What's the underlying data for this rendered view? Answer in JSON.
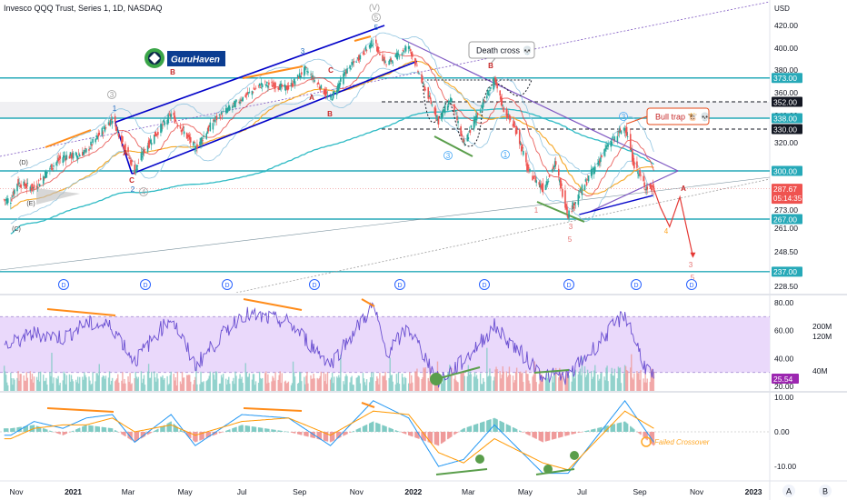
{
  "header": {
    "title": "Invesco QQQ Trust, Series 1, 1D, NASDAQ",
    "watermark_text": "GuruHaven"
  },
  "chart_data": [
    {
      "type": "candlestick",
      "symbol": "QQQ",
      "interval": "1D",
      "currency_label": "USD",
      "y_ticks": [
        420.0,
        400.0,
        380.0,
        360.0,
        340.0,
        320.0,
        273.0,
        261.0,
        248.5,
        228.5
      ],
      "ylim": [
        225,
        428
      ],
      "price_tags": [
        {
          "label": "373.00",
          "kind": "level"
        },
        {
          "label": "352.00",
          "kind": "dark"
        },
        {
          "label": "338.00",
          "kind": "level"
        },
        {
          "label": "330.00",
          "kind": "dark"
        },
        {
          "label": "300.00",
          "kind": "level"
        },
        {
          "label": "287.67",
          "sublabel": "05:14:35",
          "kind": "last"
        },
        {
          "label": "267.00",
          "kind": "level"
        },
        {
          "label": "237.00",
          "kind": "level"
        }
      ],
      "horizontal_levels": [
        373,
        338,
        300,
        267,
        237
      ],
      "dashed_levels": [
        352,
        330
      ],
      "price_path": [
        {
          "date": "2020-10-26",
          "close": 280
        },
        {
          "date": "2020-11-02",
          "close": 292
        },
        {
          "date": "2020-11-09",
          "close": 290
        },
        {
          "date": "2020-11-20",
          "close": 288
        },
        {
          "date": "2020-12-07",
          "close": 302
        },
        {
          "date": "2020-12-21",
          "close": 310
        },
        {
          "date": "2021-01-04",
          "close": 311
        },
        {
          "date": "2021-01-15",
          "close": 314
        },
        {
          "date": "2021-02-12",
          "close": 338
        },
        {
          "date": "2021-02-22",
          "close": 322
        },
        {
          "date": "2021-03-08",
          "close": 300
        },
        {
          "date": "2021-03-19",
          "close": 316
        },
        {
          "date": "2021-04-16",
          "close": 341
        },
        {
          "date": "2021-05-12",
          "close": 316
        },
        {
          "date": "2021-06-01",
          "close": 336
        },
        {
          "date": "2021-07-01",
          "close": 355
        },
        {
          "date": "2021-07-23",
          "close": 368
        },
        {
          "date": "2021-08-20",
          "close": 364
        },
        {
          "date": "2021-09-07",
          "close": 381
        },
        {
          "date": "2021-10-04",
          "close": 354
        },
        {
          "date": "2021-10-20",
          "close": 378
        },
        {
          "date": "2021-11-19",
          "close": 406
        },
        {
          "date": "2021-12-03",
          "close": 385
        },
        {
          "date": "2021-12-27",
          "close": 402
        },
        {
          "date": "2022-01-10",
          "close": 370
        },
        {
          "date": "2022-01-28",
          "close": 336
        },
        {
          "date": "2022-02-10",
          "close": 355
        },
        {
          "date": "2022-02-24",
          "close": 318
        },
        {
          "date": "2022-03-29",
          "close": 371
        },
        {
          "date": "2022-04-08",
          "close": 345
        },
        {
          "date": "2022-04-22",
          "close": 328
        },
        {
          "date": "2022-05-04",
          "close": 300
        },
        {
          "date": "2022-05-20",
          "close": 288
        },
        {
          "date": "2022-06-02",
          "close": 305
        },
        {
          "date": "2022-06-16",
          "close": 270
        },
        {
          "date": "2022-07-05",
          "close": 292
        },
        {
          "date": "2022-07-29",
          "close": 318
        },
        {
          "date": "2022-08-16",
          "close": 332
        },
        {
          "date": "2022-08-26",
          "close": 304
        },
        {
          "date": "2022-09-07",
          "close": 289
        },
        {
          "date": "2022-09-16",
          "close": 287.67
        }
      ],
      "projection_path": [
        {
          "date": "2022-09-16",
          "price": 287.67
        },
        {
          "date": "2022-09-23",
          "price": 275
        },
        {
          "date": "2022-10-03",
          "price": 262
        },
        {
          "date": "2022-10-14",
          "price": 282
        },
        {
          "date": "2022-10-28",
          "price": 246
        }
      ],
      "annotations": [
        {
          "text": "Death cross 💀",
          "kind": "callout"
        },
        {
          "text": "Bull trap 🐮 💀",
          "kind": "callout"
        },
        {
          "text": "(V)",
          "kind": "wave-gray"
        },
        {
          "text": "5",
          "kind": "wave-gray-circle"
        },
        {
          "text": "5",
          "kind": "wave-blue"
        },
        {
          "text": "3",
          "kind": "wave-blue"
        },
        {
          "text": "3",
          "kind": "wave-gray-circle"
        },
        {
          "text": "1",
          "kind": "wave-blue"
        },
        {
          "text": "2",
          "kind": "wave-blue"
        },
        {
          "text": "4",
          "kind": "wave-gray-circle"
        },
        {
          "text": "(D)",
          "kind": "wave-dark"
        },
        {
          "text": "(E)",
          "kind": "wave-dark"
        },
        {
          "text": "(C)",
          "kind": "wave-dark"
        },
        {
          "text": "C",
          "kind": "wave-red"
        },
        {
          "text": "A",
          "kind": "wave-red"
        },
        {
          "text": "B",
          "kind": "wave-red"
        },
        {
          "text": "A",
          "kind": "wave-red"
        },
        {
          "text": "B",
          "kind": "wave-red"
        },
        {
          "text": "C",
          "kind": "wave-red"
        },
        {
          "text": "B",
          "kind": "wave-red"
        },
        {
          "text": "3",
          "kind": "wave-blue-circle"
        },
        {
          "text": "1",
          "kind": "wave-blue-circle"
        },
        {
          "text": "1",
          "kind": "wave-red-thin"
        },
        {
          "text": "3",
          "kind": "wave-red-thin"
        },
        {
          "text": "5",
          "kind": "wave-red-thin"
        },
        {
          "text": "A",
          "kind": "wave-red"
        },
        {
          "text": "4",
          "kind": "wave-orange"
        },
        {
          "text": "3",
          "kind": "wave-red-thin"
        },
        {
          "text": "5",
          "kind": "wave-red-thin"
        },
        {
          "text": "C",
          "kind": "wave-red"
        },
        {
          "text": "3",
          "kind": "wave-blue-circle"
        },
        {
          "text": "B",
          "kind": "wave-red"
        }
      ],
      "dividend_markers": [
        "D",
        "D",
        "D",
        "D",
        "D",
        "D",
        "D",
        "D",
        "D"
      ]
    },
    {
      "type": "line",
      "indicator": "RSI with volume",
      "y_ticks": [
        80.0,
        60.0,
        40.0,
        20.0
      ],
      "volume_ticks": [
        "200M",
        "120M",
        "40M"
      ],
      "band": [
        30,
        70
      ],
      "last_value_label": "25.54",
      "rsi_path": [
        {
          "date": "2020-10-26",
          "value": 50
        },
        {
          "date": "2020-11-20",
          "value": 58
        },
        {
          "date": "2020-12-21",
          "value": 55
        },
        {
          "date": "2021-01-15",
          "value": 65
        },
        {
          "date": "2021-02-12",
          "value": 63
        },
        {
          "date": "2021-03-08",
          "value": 38
        },
        {
          "date": "2021-04-16",
          "value": 70
        },
        {
          "date": "2021-05-12",
          "value": 35
        },
        {
          "date": "2021-07-01",
          "value": 72
        },
        {
          "date": "2021-08-20",
          "value": 66
        },
        {
          "date": "2021-10-04",
          "value": 36
        },
        {
          "date": "2021-11-19",
          "value": 78
        },
        {
          "date": "2021-12-03",
          "value": 44
        },
        {
          "date": "2021-12-27",
          "value": 62
        },
        {
          "date": "2022-01-28",
          "value": 24
        },
        {
          "date": "2022-02-24",
          "value": 38
        },
        {
          "date": "2022-03-29",
          "value": 63
        },
        {
          "date": "2022-05-20",
          "value": 28
        },
        {
          "date": "2022-06-16",
          "value": 27
        },
        {
          "date": "2022-08-16",
          "value": 72
        },
        {
          "date": "2022-09-07",
          "value": 34
        },
        {
          "date": "2022-09-16",
          "value": 25.54
        }
      ]
    },
    {
      "type": "line",
      "indicator": "MACD",
      "y_ticks": [
        10.0,
        0.0,
        -10.0
      ],
      "annotation": "Failed Crossover",
      "macd_path": [
        {
          "date": "2020-10-26",
          "value": -1
        },
        {
          "date": "2020-11-20",
          "value": 3
        },
        {
          "date": "2020-12-21",
          "value": 1
        },
        {
          "date": "2021-01-15",
          "value": 4
        },
        {
          "date": "2021-02-12",
          "value": 5
        },
        {
          "date": "2021-03-08",
          "value": -3
        },
        {
          "date": "2021-04-16",
          "value": 5
        },
        {
          "date": "2021-05-12",
          "value": -4
        },
        {
          "date": "2021-07-01",
          "value": 5
        },
        {
          "date": "2021-08-20",
          "value": 4
        },
        {
          "date": "2021-10-04",
          "value": -4
        },
        {
          "date": "2021-11-19",
          "value": 9
        },
        {
          "date": "2021-12-27",
          "value": 4
        },
        {
          "date": "2022-01-28",
          "value": -10
        },
        {
          "date": "2022-02-24",
          "value": -8
        },
        {
          "date": "2022-03-29",
          "value": 2
        },
        {
          "date": "2022-05-20",
          "value": -12
        },
        {
          "date": "2022-06-16",
          "value": -12
        },
        {
          "date": "2022-08-16",
          "value": 9
        },
        {
          "date": "2022-09-16",
          "value": -3
        }
      ],
      "signal_path": [
        {
          "date": "2020-10-26",
          "value": -2
        },
        {
          "date": "2020-11-20",
          "value": 1
        },
        {
          "date": "2020-12-21",
          "value": 2
        },
        {
          "date": "2021-01-15",
          "value": 2
        },
        {
          "date": "2021-02-12",
          "value": 4
        },
        {
          "date": "2021-03-08",
          "value": 0
        },
        {
          "date": "2021-04-16",
          "value": 2
        },
        {
          "date": "2021-05-12",
          "value": -1
        },
        {
          "date": "2021-07-01",
          "value": 3
        },
        {
          "date": "2021-08-20",
          "value": 4
        },
        {
          "date": "2021-10-04",
          "value": -1
        },
        {
          "date": "2021-11-19",
          "value": 6
        },
        {
          "date": "2021-12-27",
          "value": 5
        },
        {
          "date": "2022-01-28",
          "value": -6
        },
        {
          "date": "2022-02-24",
          "value": -9
        },
        {
          "date": "2022-03-29",
          "value": -2
        },
        {
          "date": "2022-05-20",
          "value": -9
        },
        {
          "date": "2022-06-16",
          "value": -11
        },
        {
          "date": "2022-08-16",
          "value": 6
        },
        {
          "date": "2022-09-16",
          "value": 1
        }
      ]
    }
  ],
  "x_axis": {
    "ticks": [
      "Nov",
      "2021",
      "Mar",
      "May",
      "Jul",
      "Sep",
      "Nov",
      "2022",
      "Mar",
      "May",
      "Jul",
      "Sep",
      "Nov",
      "2023"
    ],
    "tick_dates": [
      "2020-11-01",
      "2021-01-01",
      "2021-03-01",
      "2021-05-01",
      "2021-07-01",
      "2021-09-01",
      "2021-11-01",
      "2022-01-01",
      "2022-03-01",
      "2022-05-01",
      "2022-07-01",
      "2022-09-01",
      "2022-11-01",
      "2023-01-01"
    ],
    "bold": [
      "2021",
      "2022",
      "2023"
    ],
    "corner_buttons": [
      "A",
      "B"
    ]
  },
  "colors": {
    "level": "#26a9b8",
    "channel": "#0000c8",
    "callout": "#e64a19",
    "orange": "#ff8c1a",
    "green": "#5a9e4b",
    "up": "#26a69a",
    "down": "#ef5350",
    "rsi": "#6a4fd1",
    "rsi_band": "#ead9fb",
    "macd": "#2196f3",
    "signal": "#ff9800",
    "ma200": "#2ebac4",
    "ma50": "#f5a623",
    "ma20": "#e53935",
    "bollinger": "#8fc4e0"
  }
}
